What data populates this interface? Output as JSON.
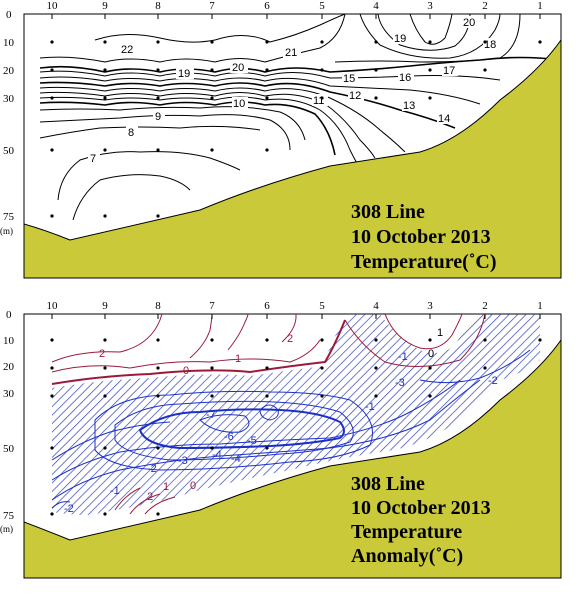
{
  "colors": {
    "seabed": "#c9c93a",
    "frame": "#000000",
    "positive": "#9b1a3c",
    "negative": "#1c30c8",
    "hatch": "#3644b8"
  },
  "stations": [
    "10",
    "9",
    "8",
    "7",
    "6",
    "5",
    "4",
    "3",
    "2",
    "1"
  ],
  "top_panel": {
    "depth_ticks": [
      "0",
      "10",
      "20",
      "30",
      "50",
      "75"
    ],
    "depth_unit": "(m)",
    "title": [
      "308 Line",
      "10 October 2013",
      "Temperature(˚C)"
    ],
    "contour_labels": [
      "22",
      "21",
      "20",
      "19",
      "18",
      "17",
      "16",
      "15",
      "14",
      "13",
      "12",
      "11",
      "10",
      "9",
      "8",
      "7",
      "20",
      "19"
    ]
  },
  "bottom_panel": {
    "depth_ticks": [
      "0",
      "10",
      "20",
      "30",
      "50",
      "75"
    ],
    "depth_unit": "(m)",
    "title": [
      "308 Line",
      "10 October 2013",
      "Temperature",
      "Anomaly(˚C)"
    ],
    "contour_labels": [
      "2",
      "1",
      "0",
      "2",
      "1",
      "0",
      "-1",
      "-2",
      "-3",
      "-4",
      "-5",
      "-6",
      "-7",
      "-2",
      "-3",
      "-4",
      "-1",
      "-2",
      "2",
      "1",
      "0",
      "-1"
    ]
  }
}
